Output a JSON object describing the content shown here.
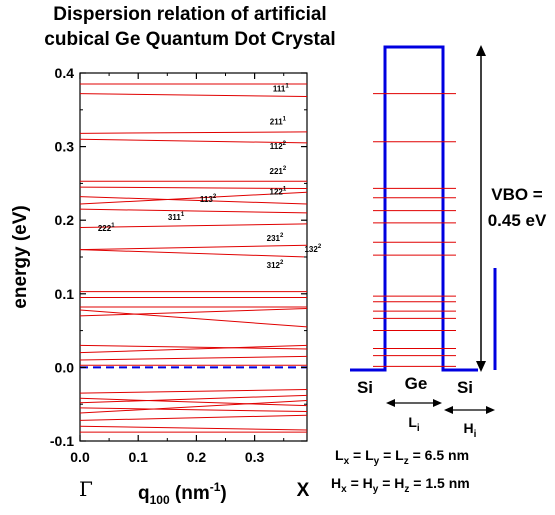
{
  "chart_data": {
    "type": "line",
    "title_line1": "Dispersion relation of artificial",
    "title_line2": "cubical Ge Quantum Dot Crystal",
    "ylabel": "energy (eV)",
    "xlabel_main": "q",
    "xlabel_sub": "100",
    "xlabel_unit": " (nm",
    "xlabel_exp": "-1",
    "xlabel_close": ")",
    "x_start_symbol": "Γ",
    "x_end_symbol": "X",
    "xlim": [
      0,
      0.39
    ],
    "ylim": [
      -0.1,
      0.4
    ],
    "xticks": [
      "0.0",
      "0.1",
      "0.2",
      "0.3"
    ],
    "xtick_values": [
      0.0,
      0.1,
      0.2,
      0.3
    ],
    "yticks": [
      "-0.1",
      "0.0",
      "0.1",
      "0.2",
      "0.3",
      "0.4"
    ],
    "ytick_values": [
      -0.1,
      0.0,
      0.1,
      0.2,
      0.3,
      0.4
    ],
    "dashed_line_y": 0.0,
    "bands": [
      {
        "y": [
          0.385,
          0.385
        ]
      },
      {
        "y": [
          0.372,
          0.368
        ]
      },
      {
        "y": [
          0.318,
          0.32
        ]
      },
      {
        "y": [
          0.31,
          0.305
        ]
      },
      {
        "y": [
          0.253,
          0.253
        ]
      },
      {
        "y": [
          0.245,
          0.243
        ]
      },
      {
        "y": [
          0.232,
          0.222
        ]
      },
      {
        "y": [
          0.222,
          0.238
        ]
      },
      {
        "y": [
          0.215,
          0.21
        ]
      },
      {
        "y": [
          0.19,
          0.195
        ]
      },
      {
        "y": [
          0.16,
          0.166
        ]
      },
      {
        "y": [
          0.16,
          0.15
        ]
      },
      {
        "y": [
          0.103,
          0.103
        ]
      },
      {
        "y": [
          0.095,
          0.095
        ]
      },
      {
        "y": [
          0.082,
          0.082
        ]
      },
      {
        "y": [
          0.078,
          0.055
        ]
      },
      {
        "y": [
          0.07,
          0.08
        ]
      },
      {
        "y": [
          0.03,
          0.025
        ]
      },
      {
        "y": [
          0.02,
          0.03
        ]
      },
      {
        "y": [
          0.01,
          0.015
        ]
      },
      {
        "y": [
          0.003,
          0.003
        ]
      },
      {
        "y": [
          -0.035,
          -0.03
        ]
      },
      {
        "y": [
          -0.042,
          -0.052
        ]
      },
      {
        "y": [
          -0.048,
          -0.038
        ]
      },
      {
        "y": [
          -0.055,
          -0.06
        ]
      },
      {
        "y": [
          -0.062,
          -0.045
        ]
      },
      {
        "y": [
          -0.072,
          -0.065
        ]
      },
      {
        "y": [
          -0.08,
          -0.085
        ]
      },
      {
        "y": [
          -0.088,
          -0.088
        ]
      }
    ],
    "band_labels": [
      {
        "base": "111",
        "sup": "1",
        "x": 0.345,
        "y": 0.375
      },
      {
        "base": "211",
        "sup": "1",
        "x": 0.34,
        "y": 0.33
      },
      {
        "base": "112",
        "sup": "2",
        "x": 0.34,
        "y": 0.297
      },
      {
        "base": "221",
        "sup": "2",
        "x": 0.34,
        "y": 0.263
      },
      {
        "base": "122",
        "sup": "1",
        "x": 0.34,
        "y": 0.235
      },
      {
        "base": "113",
        "sup": "2",
        "x": 0.22,
        "y": 0.225
      },
      {
        "base": "311",
        "sup": "1",
        "x": 0.165,
        "y": 0.2
      },
      {
        "base": "222",
        "sup": "1",
        "x": 0.045,
        "y": 0.185
      },
      {
        "base": "231",
        "sup": "2",
        "x": 0.335,
        "y": 0.172
      },
      {
        "base": "132",
        "sup": "2",
        "x": 0.4,
        "y": 0.157
      },
      {
        "base": "312",
        "sup": "2",
        "x": 0.335,
        "y": 0.135
      }
    ],
    "band_color": "#e00000",
    "dash_color": "#0000e0"
  },
  "diagram": {
    "vbo_line1": "VBO =",
    "vbo_line2": "0.45 eV",
    "si_left": "Si",
    "ge": "Ge",
    "si_right": "Si",
    "l_label": "L",
    "l_sub": "i",
    "h_label": "H",
    "h_sub": "i",
    "eq1_parts": [
      "L",
      "x",
      " = L",
      "y",
      " = L",
      "z",
      " = 6.5 nm"
    ],
    "eq2_parts": [
      "H",
      "x",
      " = H",
      "y",
      " = H",
      "z",
      " = 1.5 nm"
    ],
    "well_color": "#0000e0",
    "level_color": "#e00000",
    "levels_ev": [
      0.385,
      0.318,
      0.253,
      0.24,
      0.222,
      0.205,
      0.178,
      0.16,
      0.103,
      0.095,
      0.082,
      0.072,
      0.055,
      0.03,
      0.02,
      0.005
    ]
  }
}
